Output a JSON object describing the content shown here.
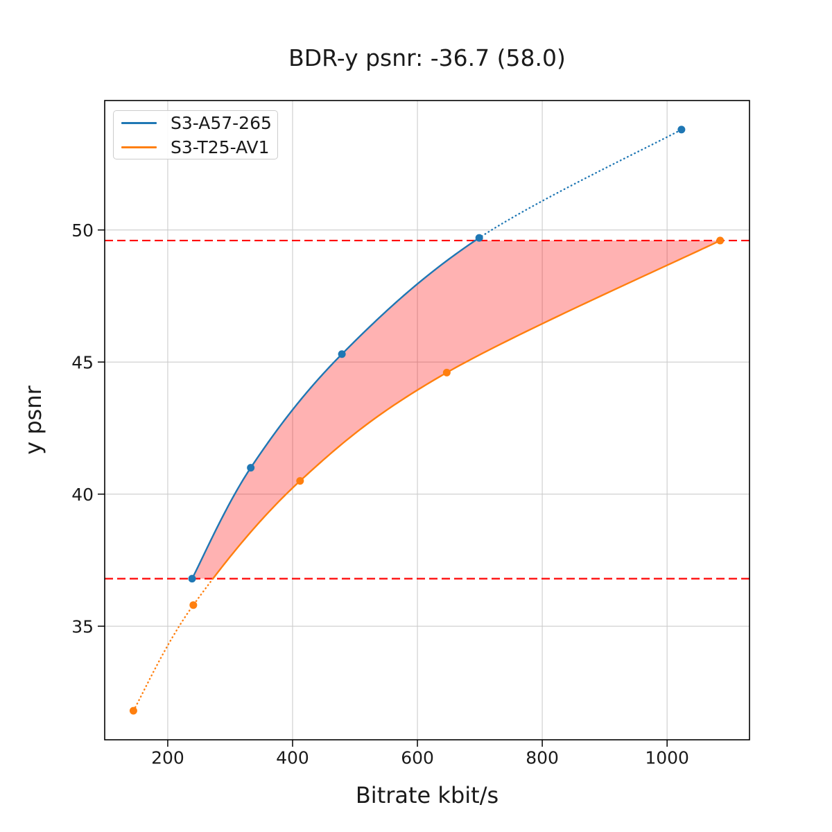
{
  "chart_data": {
    "type": "line",
    "title": "BDR-y psnr: -36.7 (58.0)",
    "xlabel": "Bitrate kbit/s",
    "ylabel": "y psnr",
    "xlim": [
      99,
      1132
    ],
    "ylim": [
      30.7,
      54.9
    ],
    "xticks": [
      200,
      400,
      600,
      800,
      1000
    ],
    "yticks": [
      35,
      40,
      45,
      50
    ],
    "grid": true,
    "legend_position": "upper left",
    "line_style": {
      "inside_interval": "solid",
      "outside_interval": "dotted"
    },
    "series": [
      {
        "name": "S3-A57-265",
        "color": "#1f77b4",
        "marker": "circle",
        "x": [
          239,
          333,
          479,
          699,
          1023
        ],
        "y": [
          36.8,
          41.0,
          45.3,
          49.7,
          53.8
        ]
      },
      {
        "name": "S3-T25-AV1",
        "color": "#ff7f0e",
        "marker": "circle",
        "x": [
          145,
          241,
          412,
          647,
          1085
        ],
        "y": [
          31.8,
          35.8,
          40.5,
          44.6,
          49.6
        ]
      }
    ],
    "bd_interval_psnr": [
      36.8,
      49.6
    ],
    "hlines": [
      {
        "y": 36.8,
        "color": "#ff0000",
        "style": "dashed"
      },
      {
        "y": 49.6,
        "color": "#ff0000",
        "style": "dashed"
      }
    ],
    "shaded_region": {
      "between": [
        "S3-A57-265",
        "S3-T25-AV1"
      ],
      "psnr_range": [
        36.8,
        49.6
      ],
      "color": "#ff0000",
      "alpha": 0.3
    }
  },
  "colors": {
    "grid": "#cccccc",
    "spine": "#000000",
    "text": "#1a1a1a",
    "legend_border": "#cccccc",
    "background": "#ffffff"
  }
}
